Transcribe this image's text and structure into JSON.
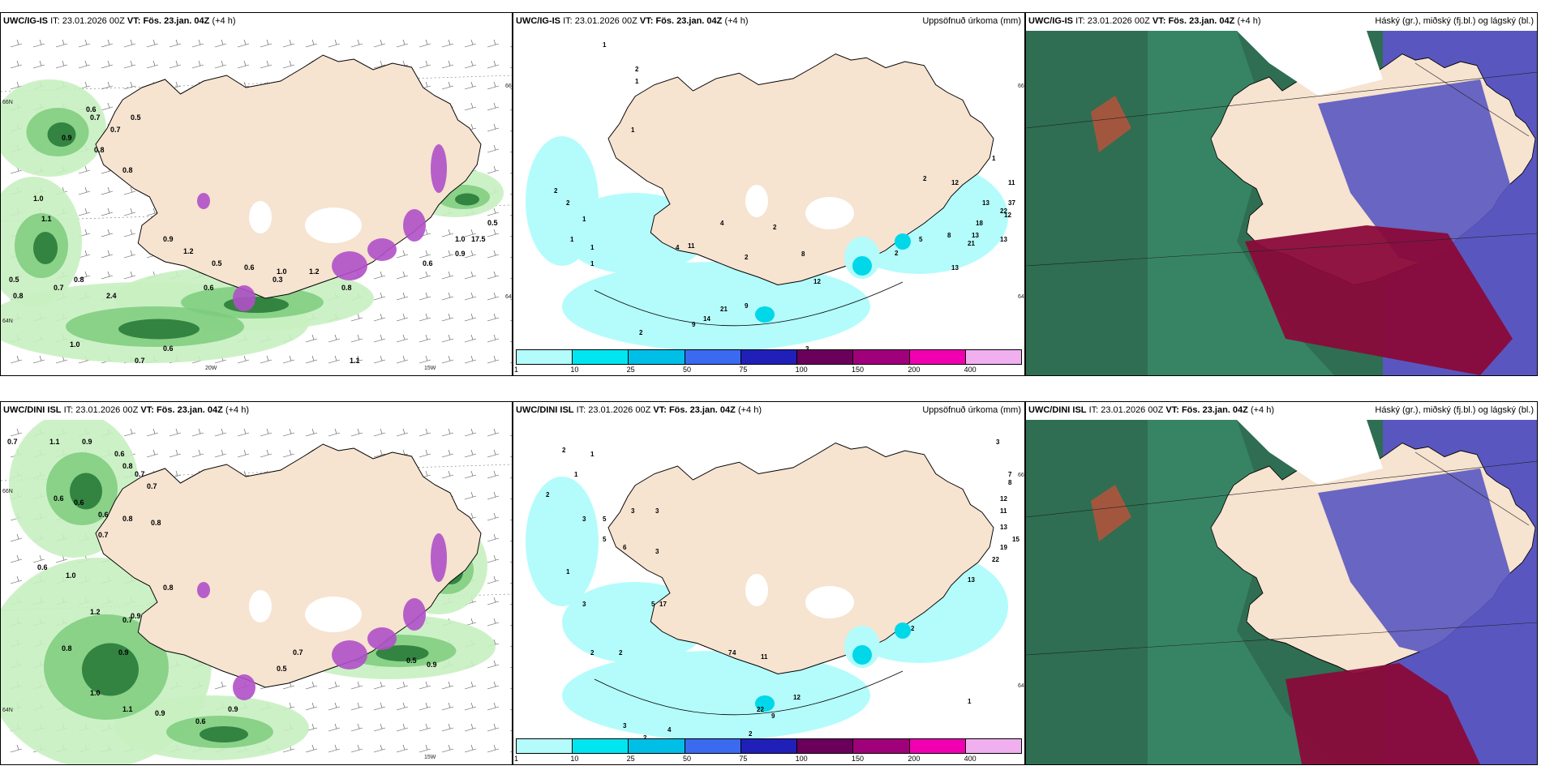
{
  "panels": [
    {
      "id": "top-left",
      "model": "UWC/IG-IS",
      "it_label": "IT:",
      "it_value": "23.01.2026 00Z",
      "vt_label": "VT:",
      "vt_value": "Fös. 23.jan. 04Z",
      "offset": "(+4 h)",
      "right_title": "",
      "axis_labels": [
        "66N",
        "64N",
        "20W",
        "15W",
        "66N",
        "64N"
      ],
      "map_labels": [
        "0.6",
        "0.7",
        "0.5",
        "0.7",
        "0.9",
        "0.8",
        "0.8",
        "1.0",
        "1.1",
        "0.9",
        "1.2",
        "0.5",
        "0.6",
        "0.3",
        "0.5",
        "0.8",
        "0.7",
        "0.8",
        "2.4",
        "1.0",
        "0.7",
        "0.6",
        "0.8",
        "1.1",
        "1.0",
        "0.9",
        "17.5",
        "0.6",
        "0.5",
        "1.2",
        "0.6",
        "1.0"
      ]
    },
    {
      "id": "top-mid",
      "model": "UWC/IG-IS",
      "it_label": "IT:",
      "it_value": "23.01.2026 00Z",
      "vt_label": "VT:",
      "vt_value": "Fös. 23.jan. 04Z",
      "offset": "(+4 h)",
      "right_title": "Uppsöfnuð úrkoma (mm)",
      "axis_labels": [
        "66N",
        "64N"
      ],
      "map_labels": [
        "1",
        "2",
        "1",
        "1",
        "2",
        "2",
        "1",
        "1",
        "1",
        "1",
        "4",
        "11",
        "4",
        "2",
        "2",
        "8",
        "12",
        "9",
        "21",
        "14",
        "9",
        "2",
        "3",
        "2",
        "2",
        "5",
        "8",
        "1",
        "13",
        "12",
        "11",
        "13",
        "12",
        "22",
        "37",
        "21",
        "13",
        "18",
        "13"
      ]
    },
    {
      "id": "top-right",
      "model": "UWC/IG-IS",
      "it_label": "IT:",
      "it_value": "23.01.2026 00Z",
      "vt_label": "VT:",
      "vt_value": "Fös. 23.jan. 04Z",
      "offset": "(+4 h)",
      "right_title": "Háský (gr.), miðský (fj.bl.) og lágský (bl.)",
      "axis_labels": [],
      "map_labels": []
    },
    {
      "id": "bottom-left",
      "model": "UWC/DINI ISL",
      "it_label": "IT:",
      "it_value": "23.01.2026 00Z",
      "vt_label": "VT:",
      "vt_value": "Fös. 23.jan. 04Z",
      "offset": "(+4 h)",
      "right_title": "",
      "axis_labels": [
        "66N",
        "64N",
        "15W"
      ],
      "map_labels": [
        "0.7",
        "1.1",
        "0.9",
        "0.6",
        "0.8",
        "0.7",
        "0.6",
        "0.6",
        "0.7",
        "0.6",
        "0.8",
        "0.8",
        "0.7",
        "0.6",
        "1.0",
        "0.8",
        "1.2",
        "0.9",
        "0.7",
        "0.8",
        "0.9",
        "1.0",
        "1.1",
        "0.9",
        "0.6",
        "0.9",
        "0.5",
        "0.7",
        "0.5",
        "0.9"
      ]
    },
    {
      "id": "bottom-mid",
      "model": "UWC/DINI ISL",
      "it_label": "IT:",
      "it_value": "23.01.2026 00Z",
      "vt_label": "VT:",
      "vt_value": "Fös. 23.jan. 04Z",
      "offset": "(+4 h)",
      "right_title": "Uppsöfnuð úrkoma (mm)",
      "axis_labels": [
        "66N",
        "64N"
      ],
      "map_labels": [
        "2",
        "1",
        "2",
        "1",
        "3",
        "5",
        "3",
        "3",
        "5",
        "6",
        "3",
        "1",
        "3",
        "5",
        "17",
        "2",
        "2",
        "7",
        "4",
        "11",
        "2",
        "22",
        "9",
        "12",
        "1",
        "3",
        "2",
        "4",
        "2",
        "3",
        "1",
        "3",
        "7",
        "8",
        "12",
        "11",
        "13",
        "15",
        "19",
        "22",
        "13"
      ]
    },
    {
      "id": "bottom-right",
      "model": "UWC/DINI ISL",
      "it_label": "IT:",
      "it_value": "23.01.2026 00Z",
      "vt_label": "VT:",
      "vt_value": "Fös. 23.jan. 04Z",
      "offset": "(+4 h)",
      "right_title": "Háský (gr.), miðský (fj.bl.) og lágský (bl.)",
      "axis_labels": [],
      "map_labels": []
    }
  ],
  "legend": {
    "ticks": [
      "1",
      "10",
      "25",
      "50",
      "75",
      "100",
      "150",
      "200",
      "400"
    ],
    "colors": [
      "#b4fcfc",
      "#00e6f0",
      "#00bfe6",
      "#3a6af0",
      "#2020b8",
      "#6a005a",
      "#a0007a",
      "#f000b0",
      "#f0b0f0"
    ]
  },
  "colors": {
    "land": "#f6e3d0",
    "snow_green_light": "#c8f0c0",
    "snow_green_mid": "#7ccc7c",
    "snow_green_dark": "#2a7a3a",
    "snow_purple": "#b050c8",
    "precip_light": "#b4fcfc",
    "precip_mid": "#00d8ea",
    "cloud_high": "#2f6e52",
    "cloud_mid": "#5a56c0",
    "cloud_low": "#8a0a3a"
  }
}
